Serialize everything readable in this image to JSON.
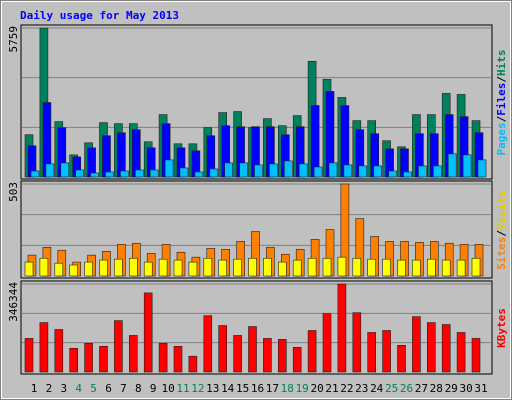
{
  "title": "Daily usage for May 2013",
  "chart_data": [
    {
      "type": "bar",
      "ylim": [
        0,
        5759
      ],
      "yticks": [
        5759
      ],
      "separator": "/",
      "categories": [
        "1",
        "2",
        "3",
        "4",
        "5",
        "6",
        "7",
        "8",
        "9",
        "10",
        "11",
        "12",
        "13",
        "14",
        "15",
        "16",
        "17",
        "18",
        "19",
        "20",
        "21",
        "22",
        "23",
        "24",
        "25",
        "26",
        "27",
        "28",
        "29",
        "30",
        "31"
      ],
      "series": [
        {
          "name": "Hits",
          "color": "#00805c",
          "values": [
            1634,
            5759,
            2140,
            856,
            1323,
            2101,
            2062,
            2062,
            1362,
            2412,
            1284,
            1284,
            1906,
            2490,
            2529,
            1906,
            2257,
            1984,
            2373,
            4474,
            3774,
            3074,
            2179,
            2179,
            1401,
            1167,
            2412,
            2412,
            3230,
            3191,
            2179
          ]
        },
        {
          "name": "Files",
          "color": "#0000ff",
          "values": [
            1206,
            2879,
            1906,
            778,
            1128,
            1595,
            1712,
            1828,
            1128,
            2062,
            1128,
            1011,
            1595,
            1984,
            1945,
            1945,
            1945,
            1634,
            1945,
            2762,
            3307,
            2762,
            1828,
            1673,
            1089,
            1089,
            1673,
            1673,
            2412,
            2334,
            1712
          ]
        },
        {
          "name": "Pages",
          "color": "#00c0ff",
          "values": [
            233,
            506,
            545,
            272,
            156,
            195,
            233,
            272,
            272,
            661,
            350,
            195,
            311,
            545,
            545,
            467,
            506,
            622,
            506,
            389,
            545,
            467,
            428,
            428,
            233,
            195,
            428,
            428,
            895,
            856,
            661
          ]
        }
      ]
    },
    {
      "type": "bar",
      "ylim": [
        0,
        503
      ],
      "yticks": [
        503
      ],
      "separator": "/",
      "categories": [
        "1",
        "2",
        "3",
        "4",
        "5",
        "6",
        "7",
        "8",
        "9",
        "10",
        "11",
        "12",
        "13",
        "14",
        "15",
        "16",
        "17",
        "18",
        "19",
        "20",
        "21",
        "22",
        "23",
        "24",
        "25",
        "26",
        "27",
        "28",
        "29",
        "30",
        "31"
      ],
      "series": [
        {
          "name": "Visits",
          "color": "#ffff00",
          "text_color": "#e8c800",
          "values": [
            76,
            97,
            70,
            60,
            76,
            87,
            92,
            97,
            76,
            92,
            87,
            76,
            97,
            87,
            92,
            97,
            97,
            76,
            87,
            97,
            97,
            103,
            97,
            92,
            92,
            87,
            87,
            92,
            87,
            87,
            97
          ]
        },
        {
          "name": "Sites",
          "color": "#ff8000",
          "values": [
            114,
            157,
            141,
            76,
            114,
            135,
            173,
            179,
            124,
            173,
            130,
            103,
            151,
            146,
            189,
            243,
            157,
            119,
            146,
            200,
            254,
            503,
            314,
            216,
            189,
            189,
            184,
            189,
            179,
            173,
            173
          ]
        }
      ]
    },
    {
      "type": "bar",
      "ylim": [
        0,
        346344
      ],
      "yticks": [
        346344
      ],
      "categories": [
        "1",
        "2",
        "3",
        "4",
        "5",
        "6",
        "7",
        "8",
        "9",
        "10",
        "11",
        "12",
        "13",
        "14",
        "15",
        "16",
        "17",
        "18",
        "19",
        "20",
        "21",
        "22",
        "23",
        "24",
        "25",
        "26",
        "27",
        "28",
        "29",
        "30",
        "31"
      ],
      "category_colors": [
        "#000000",
        "#000000",
        "#000000",
        "#00805c",
        "#00805c",
        "#000000",
        "#000000",
        "#000000",
        "#000000",
        "#000000",
        "#00805c",
        "#00805c",
        "#000000",
        "#000000",
        "#000000",
        "#000000",
        "#000000",
        "#00805c",
        "#00805c",
        "#000000",
        "#000000",
        "#000000",
        "#000000",
        "#000000",
        "#00805c",
        "#00805c",
        "#000000",
        "#000000",
        "#000000",
        "#000000",
        "#000000"
      ],
      "series": [
        {
          "name": "KBytes",
          "color": "#ff0000",
          "values": [
            132294,
            194550,
            167313,
            93384,
            112839,
            101166,
            202332,
            143967,
            311280,
            112839,
            101166,
            62256,
            221787,
            182877,
            143967,
            178986,
            132294,
            128403,
            97275,
            163422,
            229569,
            346344,
            233460,
            155640,
            163422,
            105057,
            217896,
            194550,
            186768,
            155640,
            132294
          ]
        }
      ]
    }
  ]
}
